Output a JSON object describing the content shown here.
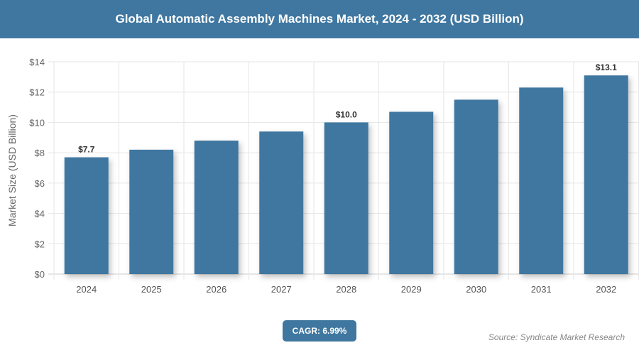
{
  "title": "Global Automatic Assembly Machines Market, 2024 - 2032 (USD Billion)",
  "cagr_label": "CAGR: 6.99%",
  "source": "Source: Syndicate Market Research",
  "colors": {
    "bar": "#3f77a0",
    "title_bg": "#3f77a0"
  },
  "chart_data": {
    "type": "bar",
    "title": "Global Automatic Assembly Machines Market, 2024 - 2032 (USD Billion)",
    "xlabel": "",
    "ylabel": "Market Size (USD Billion)",
    "categories": [
      "2024",
      "2025",
      "2026",
      "2027",
      "2028",
      "2029",
      "2030",
      "2031",
      "2032"
    ],
    "values": [
      7.7,
      8.2,
      8.8,
      9.4,
      10.0,
      10.7,
      11.5,
      12.3,
      13.1
    ],
    "data_labels": {
      "2024": "$7.7",
      "2028": "$10.0",
      "2032": "$13.1"
    },
    "ylim": [
      0,
      14
    ],
    "yticks": [
      "$0",
      "$2",
      "$4",
      "$6",
      "$8",
      "$10",
      "$12",
      "$14"
    ],
    "grid": true
  }
}
